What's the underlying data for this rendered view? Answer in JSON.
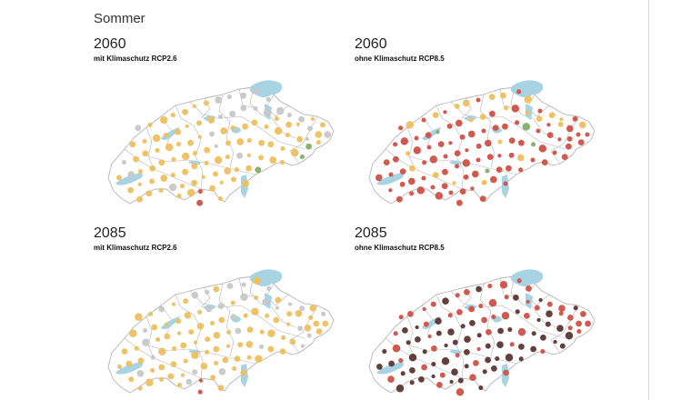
{
  "title": "Sommer",
  "colors": {
    "background": "#ffffff",
    "border": "#b5b5b5",
    "lake": "#a7d3e3",
    "gray": "#c7c7c7",
    "yellow": "#efbf5e",
    "green": "#7fae6a",
    "red": "#cf5147",
    "dark": "#5d3630"
  },
  "panels": [
    {
      "year": "2060",
      "subtitle": "mit Klimaschutz RCP2.6"
    },
    {
      "year": "2060",
      "subtitle": "ohne Klimaschutz RCP8.5"
    },
    {
      "year": "2085",
      "subtitle": "mit Klimaschutz RCP2.6"
    },
    {
      "year": "2085",
      "subtitle": "ohne Klimaschutz RCP8.5"
    }
  ]
}
